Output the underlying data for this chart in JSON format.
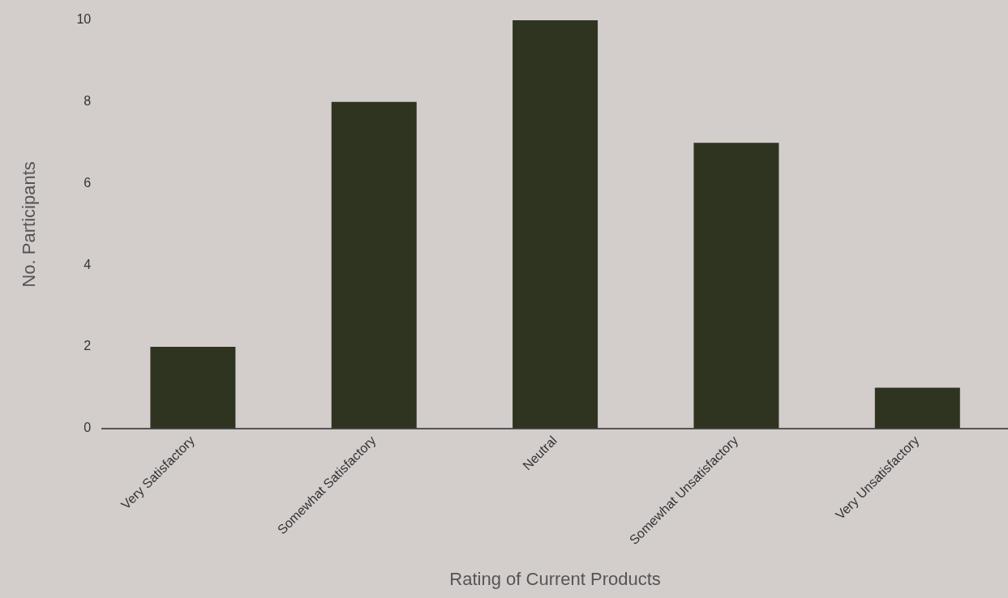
{
  "chart_data": {
    "type": "bar",
    "xlabel": "Rating of Current Products",
    "ylabel": "No. Participants",
    "categories": [
      "Very Satisfactory",
      "Somewhat Satisfactory",
      "Neutral",
      "Somewhat Unsatisfactory",
      "Very Unsatisfactory"
    ],
    "values": [
      2,
      8,
      10,
      7,
      1
    ],
    "color": "#2f3421",
    "ylim": [
      0,
      10
    ],
    "yticks": [
      0,
      2,
      4,
      6,
      8,
      10
    ],
    "grid": false,
    "legend": false
  }
}
